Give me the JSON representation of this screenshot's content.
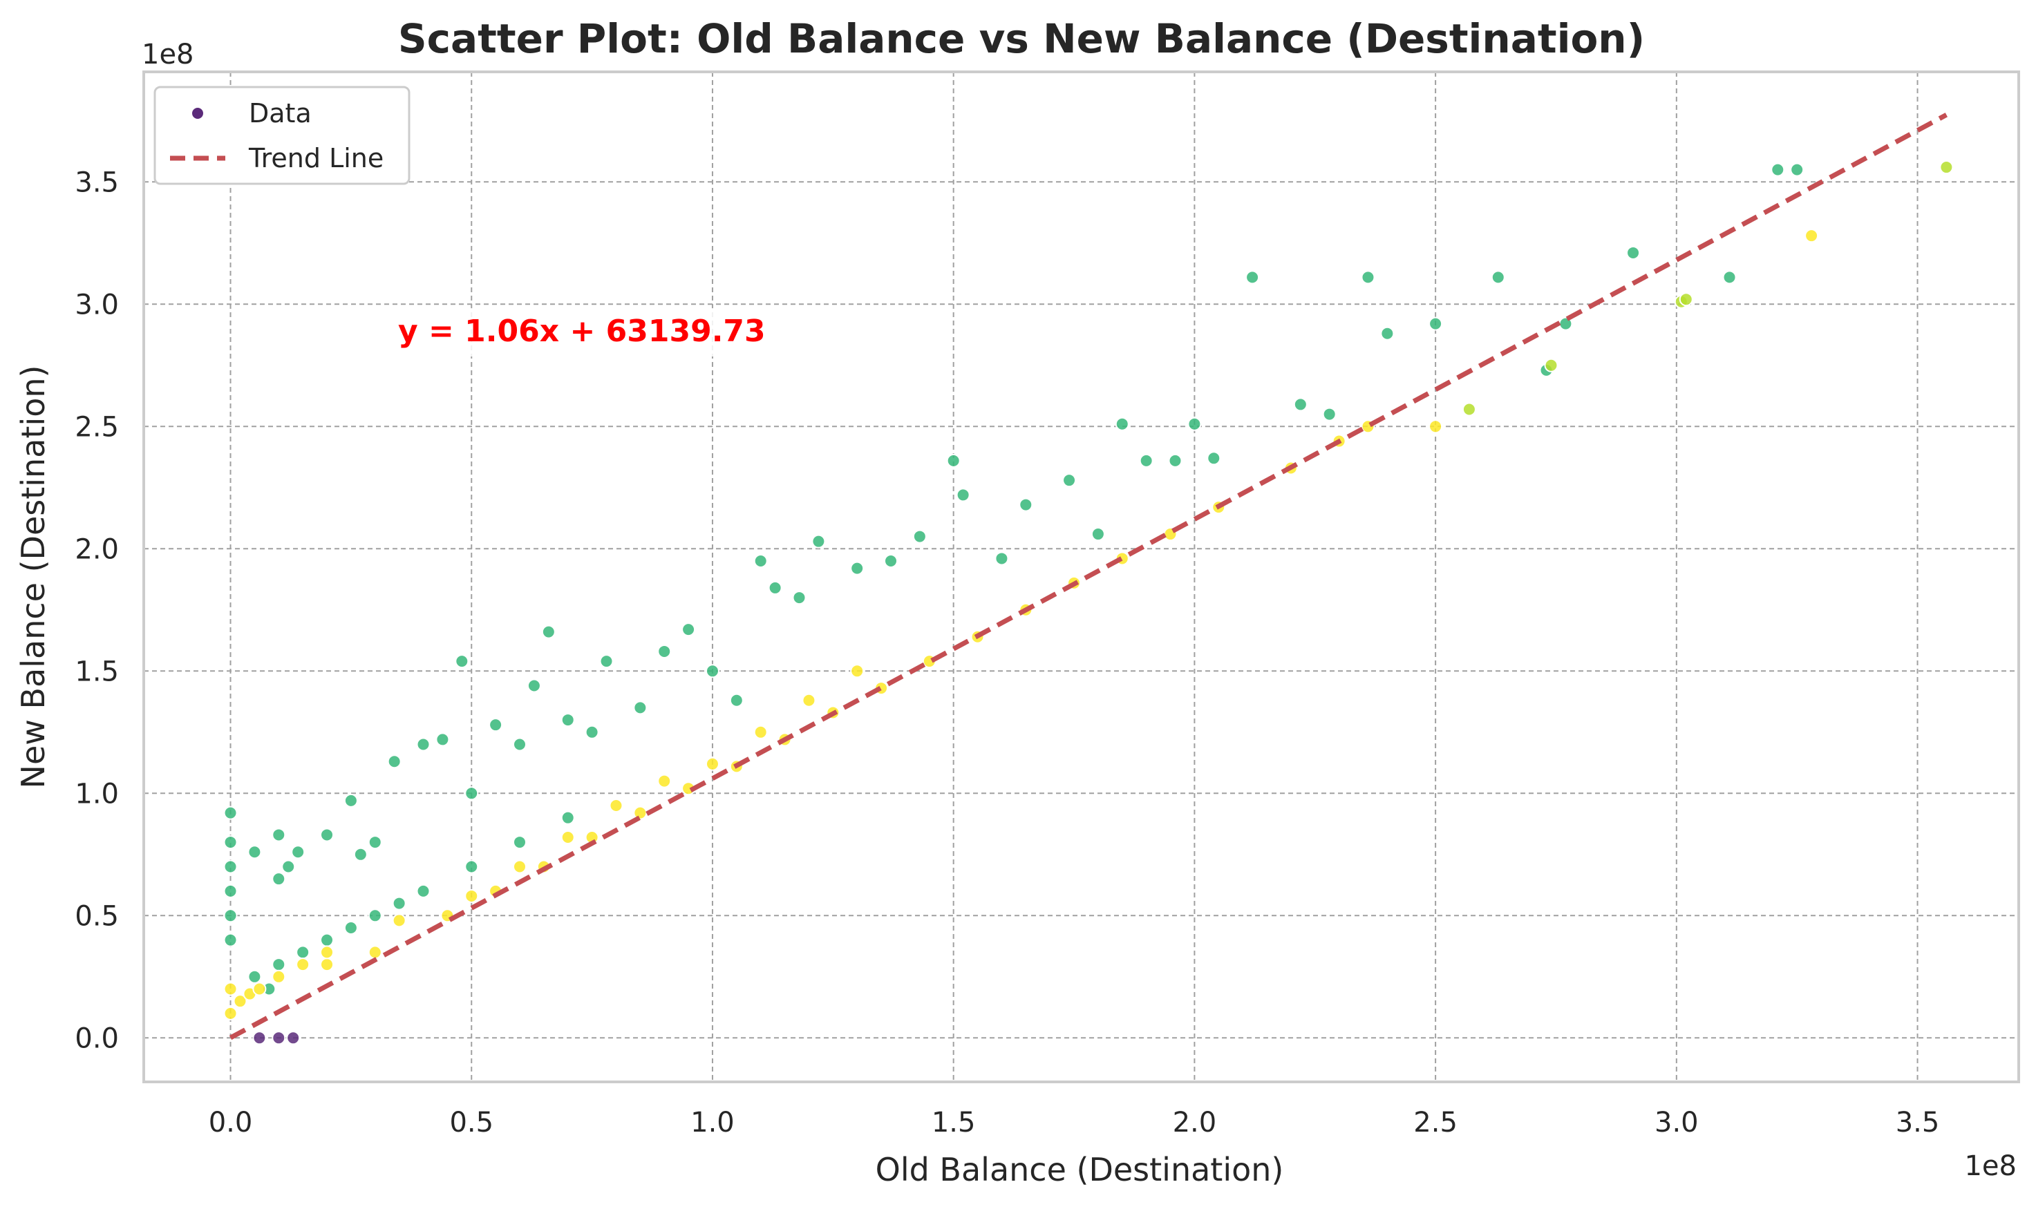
{
  "chart_data": {
    "type": "scatter",
    "title": "Scatter Plot: Old Balance vs New Balance (Destination)",
    "xlabel": "Old Balance (Destination)",
    "ylabel": "New Balance (Destination)",
    "x_offset_label": "1e8",
    "y_offset_label": "1e8",
    "xlim": [
      -0.18,
      3.71
    ],
    "ylim": [
      -0.18,
      3.95
    ],
    "x_ticks": [
      0.0,
      0.5,
      1.0,
      1.5,
      2.0,
      2.5,
      3.0,
      3.5
    ],
    "x_tick_labels": [
      "0.0",
      "0.5",
      "1.0",
      "1.5",
      "2.0",
      "2.5",
      "3.0",
      "3.5"
    ],
    "y_ticks": [
      0.0,
      0.5,
      1.0,
      1.5,
      2.0,
      2.5,
      3.0,
      3.5
    ],
    "y_tick_labels": [
      "0.0",
      "0.5",
      "1.0",
      "1.5",
      "2.0",
      "2.5",
      "3.0",
      "3.5"
    ],
    "grid": true,
    "legend_position": "top-left",
    "legend": [
      {
        "label": "Data",
        "marker": "point",
        "color": "#5b2a7a"
      },
      {
        "label": "Trend Line",
        "marker": "dashed-line",
        "color": "#c44e52"
      }
    ],
    "trend_line": {
      "equation_label": "y = 1.06x + 63139.73",
      "slope": 1.06,
      "intercept": 63139.73,
      "x_range": [
        0.0,
        3.56
      ],
      "color": "#c44e52"
    },
    "colors": {
      "green": "#35b779",
      "yellow": "#fde725",
      "yellow_green": "#b5de2b",
      "purple": "#5b2a7a",
      "grid": "#a0a0a0",
      "spine": "#cccccc"
    },
    "series": [
      {
        "name": "Data",
        "x": [
          0.0,
          0.0,
          0.0,
          0.0,
          0.0,
          0.0,
          0.05,
          0.1,
          0.1,
          0.12,
          0.14,
          0.2,
          0.25,
          0.27,
          0.3,
          0.34,
          0.4,
          0.44,
          0.48,
          0.5,
          0.55,
          0.6,
          0.63,
          0.66,
          0.7,
          0.75,
          0.78,
          0.85,
          0.9,
          0.95,
          1.0,
          1.05,
          1.1,
          1.13,
          1.18,
          1.22,
          1.3,
          1.37,
          1.43,
          1.5,
          1.52,
          1.6,
          1.65,
          1.74,
          1.8,
          1.85,
          1.9,
          1.96,
          2.0,
          2.04,
          2.12,
          2.22,
          2.28,
          2.36,
          2.4,
          2.5,
          2.63,
          2.73,
          2.77,
          2.91,
          3.11,
          3.21,
          3.25,
          0.2,
          0.35,
          0.5,
          0.6,
          0.7,
          0.8,
          0.9,
          1.0,
          1.1,
          1.2,
          1.3,
          0.3,
          0.45,
          0.55,
          0.65,
          0.75,
          0.85,
          0.95,
          1.05,
          1.15,
          1.25,
          1.35,
          1.45,
          1.55,
          1.65,
          1.75,
          1.85,
          1.95,
          2.05,
          2.2,
          2.3,
          2.36,
          2.5,
          2.57,
          2.74,
          3.01,
          3.02,
          3.28,
          3.56,
          0.0,
          0.0,
          0.05,
          0.08,
          0.1,
          0.15,
          0.2,
          0.25,
          0.3,
          0.35,
          0.4,
          0.5,
          0.6,
          0.7,
          0.06,
          0.1,
          0.13,
          0.02,
          0.04,
          0.06,
          0.1,
          0.15,
          0.2
        ],
        "y": [
          0.92,
          0.8,
          0.7,
          0.6,
          0.5,
          0.4,
          0.76,
          0.83,
          0.65,
          0.7,
          0.76,
          0.83,
          0.97,
          0.75,
          0.8,
          1.13,
          1.2,
          1.22,
          1.54,
          1.0,
          1.28,
          1.2,
          1.44,
          1.66,
          1.3,
          1.25,
          1.54,
          1.35,
          1.58,
          1.67,
          1.5,
          1.38,
          1.95,
          1.84,
          1.8,
          2.03,
          1.92,
          1.95,
          2.05,
          2.36,
          2.22,
          1.96,
          2.18,
          2.28,
          2.06,
          2.51,
          2.36,
          2.36,
          2.51,
          2.37,
          3.11,
          2.59,
          2.55,
          3.11,
          2.88,
          2.92,
          3.11,
          2.73,
          2.92,
          3.21,
          3.11,
          3.55,
          3.55,
          0.3,
          0.48,
          0.58,
          0.7,
          0.82,
          0.95,
          1.05,
          1.12,
          1.25,
          1.38,
          1.5,
          0.35,
          0.5,
          0.6,
          0.7,
          0.82,
          0.92,
          1.02,
          1.11,
          1.22,
          1.33,
          1.43,
          1.54,
          1.64,
          1.75,
          1.86,
          1.96,
          2.06,
          2.17,
          2.33,
          2.44,
          2.5,
          2.5,
          2.57,
          2.75,
          3.01,
          3.02,
          3.28,
          3.56,
          0.2,
          0.1,
          0.25,
          0.2,
          0.3,
          0.35,
          0.4,
          0.45,
          0.5,
          0.55,
          0.6,
          0.7,
          0.8,
          0.9,
          0.0,
          0.0,
          0.0,
          0.15,
          0.18,
          0.2,
          0.25,
          0.3,
          0.35
        ],
        "color_group": [
          "g",
          "g",
          "g",
          "g",
          "g",
          "g",
          "g",
          "g",
          "g",
          "g",
          "g",
          "g",
          "g",
          "g",
          "g",
          "g",
          "g",
          "g",
          "g",
          "g",
          "g",
          "g",
          "g",
          "g",
          "g",
          "g",
          "g",
          "g",
          "g",
          "g",
          "g",
          "g",
          "g",
          "g",
          "g",
          "g",
          "g",
          "g",
          "g",
          "g",
          "g",
          "g",
          "g",
          "g",
          "g",
          "g",
          "g",
          "g",
          "g",
          "g",
          "g",
          "g",
          "g",
          "g",
          "g",
          "g",
          "g",
          "g",
          "g",
          "g",
          "g",
          "g",
          "g",
          "y",
          "y",
          "y",
          "y",
          "y",
          "y",
          "y",
          "y",
          "y",
          "y",
          "y",
          "y",
          "y",
          "y",
          "y",
          "y",
          "y",
          "y",
          "y",
          "y",
          "y",
          "y",
          "y",
          "y",
          "y",
          "y",
          "y",
          "y",
          "y",
          "y",
          "y",
          "y",
          "y",
          "yg",
          "yg",
          "yg",
          "yg",
          "y",
          "yg",
          "y",
          "y",
          "g",
          "g",
          "g",
          "g",
          "g",
          "g",
          "g",
          "g",
          "g",
          "g",
          "g",
          "g",
          "p",
          "p",
          "p",
          "y",
          "y",
          "y",
          "y",
          "y",
          "y"
        ]
      }
    ]
  }
}
